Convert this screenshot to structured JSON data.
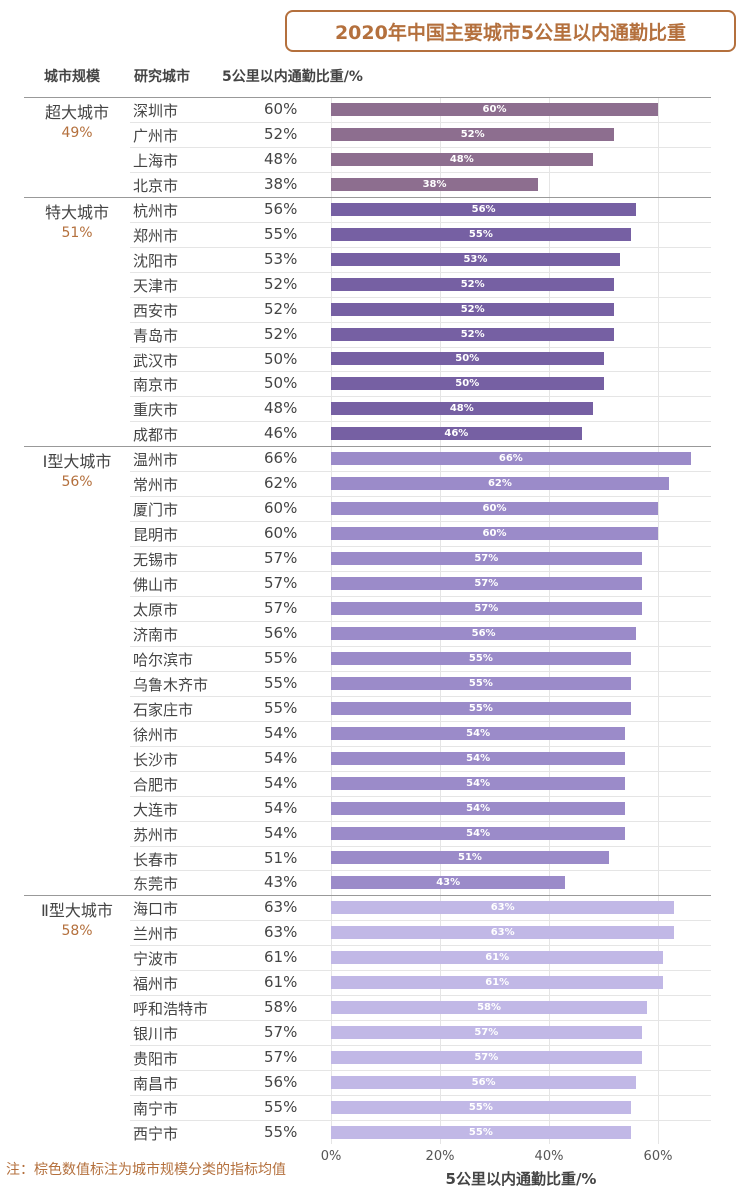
{
  "chart_data": {
    "type": "bar",
    "orientation": "horizontal",
    "title": "2020年中国主要城市5公里以内通勤比重",
    "columns": [
      "城市规模",
      "研究城市",
      "5公里以内通勤比重/%"
    ],
    "xlabel": "5公里以内通勤比重/%",
    "xlim": [
      0,
      70
    ],
    "ticks": [
      "0%",
      "20%",
      "40%",
      "60%"
    ],
    "tick_values": [
      0,
      20,
      40,
      60
    ],
    "note": "注：棕色数值标注为城市规模分类的指标均值",
    "groups": [
      {
        "name": "超大城市",
        "average": "49%",
        "color": "#8d6e8f",
        "cities": [
          {
            "city": "深圳市",
            "label": "60%",
            "value": 60
          },
          {
            "city": "广州市",
            "label": "52%",
            "value": 52
          },
          {
            "city": "上海市",
            "label": "48%",
            "value": 48
          },
          {
            "city": "北京市",
            "label": "38%",
            "value": 38
          }
        ]
      },
      {
        "name": "特大城市",
        "average": "51%",
        "color": "#7660a3",
        "cities": [
          {
            "city": "杭州市",
            "label": "56%",
            "value": 56
          },
          {
            "city": "郑州市",
            "label": "55%",
            "value": 55
          },
          {
            "city": "沈阳市",
            "label": "53%",
            "value": 53
          },
          {
            "city": "天津市",
            "label": "52%",
            "value": 52
          },
          {
            "city": "西安市",
            "label": "52%",
            "value": 52
          },
          {
            "city": "青岛市",
            "label": "52%",
            "value": 52
          },
          {
            "city": "武汉市",
            "label": "50%",
            "value": 50
          },
          {
            "city": "南京市",
            "label": "50%",
            "value": 50
          },
          {
            "city": "重庆市",
            "label": "48%",
            "value": 48
          },
          {
            "city": "成都市",
            "label": "46%",
            "value": 46
          }
        ]
      },
      {
        "name": "Ⅰ型大城市",
        "average": "56%",
        "color": "#9b8bc9",
        "cities": [
          {
            "city": "温州市",
            "label": "66%",
            "value": 66
          },
          {
            "city": "常州市",
            "label": "62%",
            "value": 62
          },
          {
            "city": "厦门市",
            "label": "60%",
            "value": 60
          },
          {
            "city": "昆明市",
            "label": "60%",
            "value": 60
          },
          {
            "city": "无锡市",
            "label": "57%",
            "value": 57
          },
          {
            "city": "佛山市",
            "label": "57%",
            "value": 57
          },
          {
            "city": "太原市",
            "label": "57%",
            "value": 57
          },
          {
            "city": "济南市",
            "label": "56%",
            "value": 56
          },
          {
            "city": "哈尔滨市",
            "label": "55%",
            "value": 55
          },
          {
            "city": "乌鲁木齐市",
            "label": "55%",
            "value": 55
          },
          {
            "city": "石家庄市",
            "label": "55%",
            "value": 55
          },
          {
            "city": "徐州市",
            "label": "54%",
            "value": 54
          },
          {
            "city": "长沙市",
            "label": "54%",
            "value": 54
          },
          {
            "city": "合肥市",
            "label": "54%",
            "value": 54
          },
          {
            "city": "大连市",
            "label": "54%",
            "value": 54
          },
          {
            "city": "苏州市",
            "label": "54%",
            "value": 54
          },
          {
            "city": "长春市",
            "label": "51%",
            "value": 51
          },
          {
            "city": "东莞市",
            "label": "43%",
            "value": 43
          }
        ]
      },
      {
        "name": "Ⅱ型大城市",
        "average": "58%",
        "color": "#c1b8e6",
        "cities": [
          {
            "city": "海口市",
            "label": "63%",
            "value": 63
          },
          {
            "city": "兰州市",
            "label": "63%",
            "value": 63
          },
          {
            "city": "宁波市",
            "label": "61%",
            "value": 61
          },
          {
            "city": "福州市",
            "label": "61%",
            "value": 61
          },
          {
            "city": "呼和浩特市",
            "label": "58%",
            "value": 58
          },
          {
            "city": "银川市",
            "label": "57%",
            "value": 57
          },
          {
            "city": "贵阳市",
            "label": "57%",
            "value": 57
          },
          {
            "city": "南昌市",
            "label": "56%",
            "value": 56
          },
          {
            "city": "南宁市",
            "label": "55%",
            "value": 55
          },
          {
            "city": "西宁市",
            "label": "55%",
            "value": 55
          }
        ]
      }
    ]
  }
}
